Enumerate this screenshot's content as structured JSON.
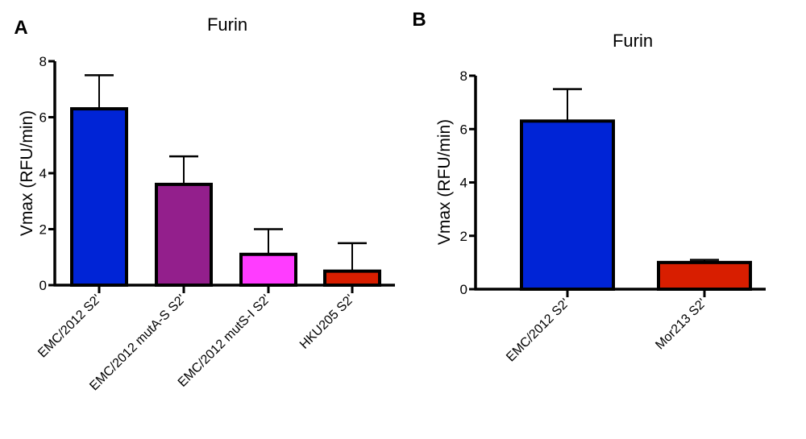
{
  "chart_data": [
    {
      "panel_label": "A",
      "type": "bar",
      "title": "Furin",
      "xlabel": "",
      "ylabel": "Vmax (RFU/min)",
      "ylim": [
        0,
        8
      ],
      "yticks": [
        0,
        2,
        4,
        6,
        8
      ],
      "grid": false,
      "categories": [
        "EMC/2012 S2'",
        "EMC/2012 mutA-S S2'",
        "EMC/2012 mutS-I S2'",
        "HKU205 S2'"
      ],
      "values": [
        6.3,
        3.6,
        1.1,
        0.5
      ],
      "error_upper": [
        1.2,
        1.0,
        0.9,
        1.0
      ],
      "colors": [
        "#0024d6",
        "#931f8c",
        "#ff3cff",
        "#d81e00"
      ]
    },
    {
      "panel_label": "B",
      "type": "bar",
      "title": "Furin",
      "xlabel": "",
      "ylabel": "Vmax (RFU/min)",
      "ylim": [
        0,
        8
      ],
      "yticks": [
        0,
        2,
        4,
        6,
        8
      ],
      "grid": false,
      "categories": [
        "EMC/2012 S2'",
        "Mor213 S2'"
      ],
      "values": [
        6.3,
        1.0
      ],
      "error_upper": [
        1.2,
        0.1
      ],
      "colors": [
        "#0024d6",
        "#d81e00"
      ]
    }
  ]
}
